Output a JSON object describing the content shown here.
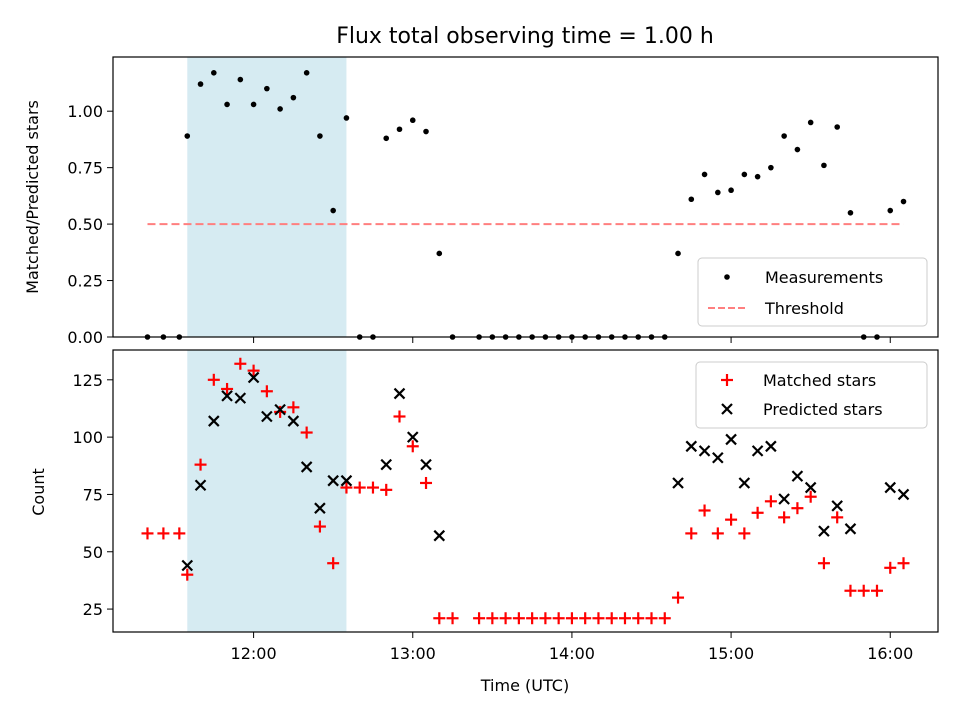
{
  "chart_data": [
    {
      "type": "scatter",
      "title": "Flux total observing time = 1.00 h",
      "xlabel": "",
      "ylabel": "Matched/Predicted stars",
      "xlim": [
        "11:07",
        "16:18"
      ],
      "ylim": [
        0,
        1.24
      ],
      "yticks": [
        "0.00",
        "0.25",
        "0.50",
        "0.75",
        "1.00"
      ],
      "legend": "lower-right",
      "highlight_span": [
        "11:35",
        "12:35"
      ],
      "highlight_color": "#add8e6",
      "series": [
        {
          "name": "Measurements",
          "marker": "dot",
          "color": "#000000",
          "points": [
            [
              "11:20",
              0.0
            ],
            [
              "11:26",
              0.0
            ],
            [
              "11:32",
              0.0
            ],
            [
              "11:35",
              0.89
            ],
            [
              "11:40",
              1.12
            ],
            [
              "11:45",
              1.17
            ],
            [
              "11:50",
              1.03
            ],
            [
              "11:55",
              1.14
            ],
            [
              "12:00",
              1.03
            ],
            [
              "12:05",
              1.1
            ],
            [
              "12:10",
              1.01
            ],
            [
              "12:15",
              1.06
            ],
            [
              "12:20",
              1.17
            ],
            [
              "12:25",
              0.89
            ],
            [
              "12:30",
              0.56
            ],
            [
              "12:35",
              0.97
            ],
            [
              "12:40",
              0.0
            ],
            [
              "12:45",
              0.0
            ],
            [
              "12:50",
              0.88
            ],
            [
              "12:55",
              0.92
            ],
            [
              "13:00",
              0.96
            ],
            [
              "13:05",
              0.91
            ],
            [
              "13:10",
              0.37
            ],
            [
              "13:15",
              0.0
            ],
            [
              "13:25",
              0.0
            ],
            [
              "13:30",
              0.0
            ],
            [
              "13:35",
              0.0
            ],
            [
              "13:40",
              0.0
            ],
            [
              "13:45",
              0.0
            ],
            [
              "13:50",
              0.0
            ],
            [
              "13:55",
              0.0
            ],
            [
              "14:00",
              0.0
            ],
            [
              "14:05",
              0.0
            ],
            [
              "14:10",
              0.0
            ],
            [
              "14:15",
              0.0
            ],
            [
              "14:20",
              0.0
            ],
            [
              "14:25",
              0.0
            ],
            [
              "14:30",
              0.0
            ],
            [
              "14:35",
              0.0
            ],
            [
              "14:40",
              0.37
            ],
            [
              "14:45",
              0.61
            ],
            [
              "14:50",
              0.72
            ],
            [
              "14:55",
              0.64
            ],
            [
              "15:00",
              0.65
            ],
            [
              "15:05",
              0.72
            ],
            [
              "15:10",
              0.71
            ],
            [
              "15:15",
              0.75
            ],
            [
              "15:20",
              0.89
            ],
            [
              "15:25",
              0.83
            ],
            [
              "15:30",
              0.95
            ],
            [
              "15:35",
              0.76
            ],
            [
              "15:40",
              0.93
            ],
            [
              "15:45",
              0.55
            ],
            [
              "15:50",
              0.0
            ],
            [
              "15:55",
              0.0
            ],
            [
              "16:00",
              0.56
            ],
            [
              "16:05",
              0.6
            ]
          ]
        },
        {
          "name": "Threshold",
          "line": "dashed",
          "color": "#ff7f7f",
          "points": [
            [
              "11:20",
              0.5
            ],
            [
              "16:05",
              0.5
            ]
          ]
        }
      ]
    },
    {
      "type": "scatter",
      "title": "",
      "xlabel": "Time (UTC)",
      "ylabel": "Count",
      "xlim": [
        "11:07",
        "16:18"
      ],
      "ylim": [
        15,
        138
      ],
      "yticks": [
        "25",
        "50",
        "75",
        "100",
        "125"
      ],
      "xticks": [
        "12:00",
        "13:00",
        "14:00",
        "15:00",
        "16:00"
      ],
      "legend": "upper-right",
      "highlight_span": [
        "11:35",
        "12:35"
      ],
      "highlight_color": "#add8e6",
      "series": [
        {
          "name": "Matched stars",
          "marker": "plus",
          "color": "#ff0000",
          "points": [
            [
              "11:20",
              58
            ],
            [
              "11:26",
              58
            ],
            [
              "11:32",
              58
            ],
            [
              "11:35",
              40
            ],
            [
              "11:40",
              88
            ],
            [
              "11:45",
              125
            ],
            [
              "11:50",
              121
            ],
            [
              "11:55",
              132
            ],
            [
              "12:00",
              129
            ],
            [
              "12:05",
              120
            ],
            [
              "12:10",
              111
            ],
            [
              "12:15",
              113
            ],
            [
              "12:20",
              102
            ],
            [
              "12:25",
              61
            ],
            [
              "12:30",
              45
            ],
            [
              "12:35",
              78
            ],
            [
              "12:40",
              78
            ],
            [
              "12:45",
              78
            ],
            [
              "12:50",
              77
            ],
            [
              "12:55",
              109
            ],
            [
              "13:00",
              96
            ],
            [
              "13:05",
              80
            ],
            [
              "13:10",
              21
            ],
            [
              "13:15",
              21
            ],
            [
              "13:25",
              21
            ],
            [
              "13:30",
              21
            ],
            [
              "13:35",
              21
            ],
            [
              "13:40",
              21
            ],
            [
              "13:45",
              21
            ],
            [
              "13:50",
              21
            ],
            [
              "13:55",
              21
            ],
            [
              "14:00",
              21
            ],
            [
              "14:05",
              21
            ],
            [
              "14:10",
              21
            ],
            [
              "14:15",
              21
            ],
            [
              "14:20",
              21
            ],
            [
              "14:25",
              21
            ],
            [
              "14:30",
              21
            ],
            [
              "14:35",
              21
            ],
            [
              "14:40",
              30
            ],
            [
              "14:45",
              58
            ],
            [
              "14:50",
              68
            ],
            [
              "14:55",
              58
            ],
            [
              "15:00",
              64
            ],
            [
              "15:05",
              58
            ],
            [
              "15:10",
              67
            ],
            [
              "15:15",
              72
            ],
            [
              "15:20",
              65
            ],
            [
              "15:25",
              69
            ],
            [
              "15:30",
              74
            ],
            [
              "15:35",
              45
            ],
            [
              "15:40",
              65
            ],
            [
              "15:45",
              33
            ],
            [
              "15:50",
              33
            ],
            [
              "15:55",
              33
            ],
            [
              "16:00",
              43
            ],
            [
              "16:05",
              45
            ]
          ]
        },
        {
          "name": "Predicted stars",
          "marker": "x",
          "color": "#000000",
          "points": [
            [
              "11:35",
              44
            ],
            [
              "11:40",
              79
            ],
            [
              "11:45",
              107
            ],
            [
              "11:50",
              118
            ],
            [
              "11:55",
              117
            ],
            [
              "12:00",
              126
            ],
            [
              "12:05",
              109
            ],
            [
              "12:10",
              112
            ],
            [
              "12:15",
              107
            ],
            [
              "12:20",
              87
            ],
            [
              "12:25",
              69
            ],
            [
              "12:30",
              81
            ],
            [
              "12:35",
              81
            ],
            [
              "12:50",
              88
            ],
            [
              "12:55",
              119
            ],
            [
              "13:00",
              100
            ],
            [
              "13:05",
              88
            ],
            [
              "13:10",
              57
            ],
            [
              "14:40",
              80
            ],
            [
              "14:45",
              96
            ],
            [
              "14:50",
              94
            ],
            [
              "14:55",
              91
            ],
            [
              "15:00",
              99
            ],
            [
              "15:05",
              80
            ],
            [
              "15:10",
              94
            ],
            [
              "15:15",
              96
            ],
            [
              "15:20",
              73
            ],
            [
              "15:25",
              83
            ],
            [
              "15:30",
              78
            ],
            [
              "15:35",
              59
            ],
            [
              "15:40",
              70
            ],
            [
              "15:45",
              60
            ],
            [
              "16:00",
              78
            ],
            [
              "16:05",
              75
            ]
          ]
        }
      ]
    }
  ]
}
